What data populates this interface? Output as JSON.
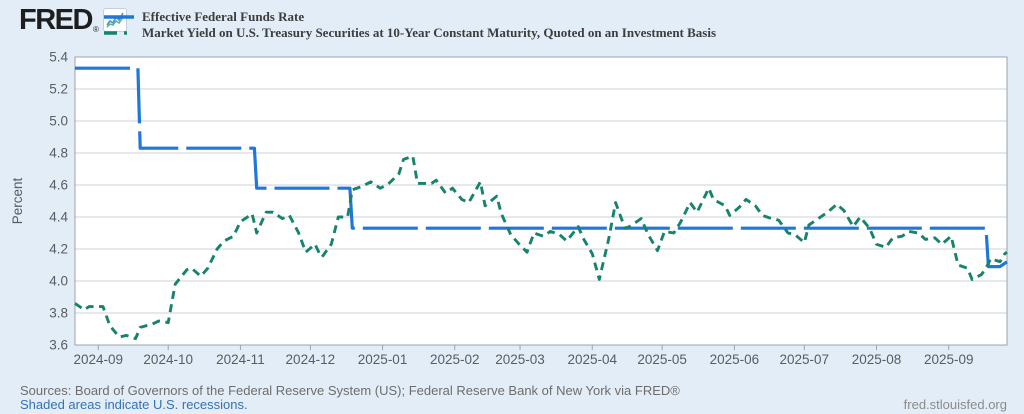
{
  "header": {
    "logo_text": "FRED",
    "logo_reg_mark": "®",
    "legend": [
      {
        "label": "Effective Federal Funds Rate",
        "color": "#2176d9",
        "style": "solid"
      },
      {
        "label": "Market Yield on U.S. Treasury Securities at 10-Year Constant Maturity, Quoted on an Investment Basis",
        "color": "#17836c",
        "style": "dash-dot"
      }
    ]
  },
  "footer": {
    "sources_line": "Sources: Board of Governors of the Federal Reserve System (US); Federal Reserve Bank of New York via FRED®",
    "recession_note": "Shaded areas indicate U.S. recessions.",
    "site_link": "fred.stlouisfed.org"
  },
  "chart_data": {
    "type": "line",
    "title": "",
    "xlabel": "",
    "ylabel": "Percent",
    "ylim": [
      3.6,
      5.4
    ],
    "y_ticks": [
      3.6,
      3.8,
      4.0,
      4.2,
      4.4,
      4.6,
      4.8,
      5.0,
      5.2,
      5.4
    ],
    "x_domain": [
      "2024-08-22",
      "2025-09-26"
    ],
    "x_ticks": [
      "2024-09",
      "2024-10",
      "2024-11",
      "2024-12",
      "2025-01",
      "2025-02",
      "2025-03",
      "2025-04",
      "2025-05",
      "2025-06",
      "2025-07",
      "2025-08",
      "2025-09"
    ],
    "grid": "horizontal",
    "legend_position": "top-left",
    "plot_bg": "#ffffff",
    "grid_color": "#ccd2d8",
    "axis_color": "#9aa4ae",
    "tick_label_color": "#585d62",
    "series": [
      {
        "name": "Effective Federal Funds Rate",
        "color": "#2176d9",
        "dash": "long-dash",
        "width": 3.2,
        "points": [
          [
            "2024-08-22",
            5.33
          ],
          [
            "2024-09-18",
            5.33
          ],
          [
            "2024-09-19",
            4.83
          ],
          [
            "2024-11-07",
            4.83
          ],
          [
            "2024-11-08",
            4.58
          ],
          [
            "2024-12-18",
            4.58
          ],
          [
            "2024-12-19",
            4.33
          ],
          [
            "2025-09-17",
            4.33
          ],
          [
            "2025-09-18",
            4.09
          ],
          [
            "2025-09-23",
            4.09
          ],
          [
            "2025-09-26",
            4.12
          ]
        ]
      },
      {
        "name": "Market Yield on U.S. Treasury Securities at 10-Year Constant Maturity, Quoted on an Investment Basis",
        "color": "#17836c",
        "dash": "short-dash",
        "width": 2.9,
        "points": [
          [
            "2024-08-22",
            3.86
          ],
          [
            "2024-08-26",
            3.82
          ],
          [
            "2024-08-28",
            3.84
          ],
          [
            "2024-09-03",
            3.84
          ],
          [
            "2024-09-06",
            3.72
          ],
          [
            "2024-09-10",
            3.65
          ],
          [
            "2024-09-13",
            3.66
          ],
          [
            "2024-09-17",
            3.64
          ],
          [
            "2024-09-19",
            3.71
          ],
          [
            "2024-09-24",
            3.73
          ],
          [
            "2024-09-27",
            3.75
          ],
          [
            "2024-10-01",
            3.74
          ],
          [
            "2024-10-04",
            3.98
          ],
          [
            "2024-10-09",
            4.07
          ],
          [
            "2024-10-11",
            4.08
          ],
          [
            "2024-10-15",
            4.03
          ],
          [
            "2024-10-18",
            4.08
          ],
          [
            "2024-10-22",
            4.2
          ],
          [
            "2024-10-25",
            4.25
          ],
          [
            "2024-10-29",
            4.28
          ],
          [
            "2024-11-01",
            4.37
          ],
          [
            "2024-11-06",
            4.42
          ],
          [
            "2024-11-08",
            4.3
          ],
          [
            "2024-11-12",
            4.43
          ],
          [
            "2024-11-15",
            4.43
          ],
          [
            "2024-11-19",
            4.39
          ],
          [
            "2024-11-22",
            4.41
          ],
          [
            "2024-11-26",
            4.3
          ],
          [
            "2024-11-29",
            4.18
          ],
          [
            "2024-12-03",
            4.23
          ],
          [
            "2024-12-05",
            4.17
          ],
          [
            "2024-12-06",
            4.15
          ],
          [
            "2024-12-10",
            4.23
          ],
          [
            "2024-12-13",
            4.4
          ],
          [
            "2024-12-17",
            4.4
          ],
          [
            "2024-12-19",
            4.57
          ],
          [
            "2024-12-23",
            4.59
          ],
          [
            "2024-12-27",
            4.62
          ],
          [
            "2024-12-31",
            4.58
          ],
          [
            "2025-01-03",
            4.6
          ],
          [
            "2025-01-08",
            4.67
          ],
          [
            "2025-01-10",
            4.76
          ],
          [
            "2025-01-14",
            4.78
          ],
          [
            "2025-01-16",
            4.61
          ],
          [
            "2025-01-22",
            4.61
          ],
          [
            "2025-01-24",
            4.63
          ],
          [
            "2025-01-28",
            4.55
          ],
          [
            "2025-01-31",
            4.58
          ],
          [
            "2025-02-04",
            4.51
          ],
          [
            "2025-02-07",
            4.49
          ],
          [
            "2025-02-12",
            4.62
          ],
          [
            "2025-02-14",
            4.47
          ],
          [
            "2025-02-19",
            4.53
          ],
          [
            "2025-02-21",
            4.42
          ],
          [
            "2025-02-25",
            4.29
          ],
          [
            "2025-02-28",
            4.24
          ],
          [
            "2025-03-04",
            4.18
          ],
          [
            "2025-03-07",
            4.3
          ],
          [
            "2025-03-11",
            4.28
          ],
          [
            "2025-03-14",
            4.31
          ],
          [
            "2025-03-18",
            4.29
          ],
          [
            "2025-03-21",
            4.25
          ],
          [
            "2025-03-26",
            4.34
          ],
          [
            "2025-03-28",
            4.27
          ],
          [
            "2025-04-01",
            4.17
          ],
          [
            "2025-04-04",
            4.01
          ],
          [
            "2025-04-08",
            4.26
          ],
          [
            "2025-04-11",
            4.49
          ],
          [
            "2025-04-15",
            4.33
          ],
          [
            "2025-04-17",
            4.34
          ],
          [
            "2025-04-22",
            4.39
          ],
          [
            "2025-04-25",
            4.29
          ],
          [
            "2025-04-29",
            4.19
          ],
          [
            "2025-05-02",
            4.31
          ],
          [
            "2025-05-06",
            4.3
          ],
          [
            "2025-05-09",
            4.37
          ],
          [
            "2025-05-13",
            4.49
          ],
          [
            "2025-05-16",
            4.43
          ],
          [
            "2025-05-21",
            4.58
          ],
          [
            "2025-05-23",
            4.51
          ],
          [
            "2025-05-28",
            4.47
          ],
          [
            "2025-05-30",
            4.41
          ],
          [
            "2025-06-03",
            4.46
          ],
          [
            "2025-06-06",
            4.51
          ],
          [
            "2025-06-10",
            4.47
          ],
          [
            "2025-06-13",
            4.41
          ],
          [
            "2025-06-17",
            4.39
          ],
          [
            "2025-06-20",
            4.38
          ],
          [
            "2025-06-24",
            4.3
          ],
          [
            "2025-06-27",
            4.29
          ],
          [
            "2025-07-01",
            4.24
          ],
          [
            "2025-07-03",
            4.35
          ],
          [
            "2025-07-08",
            4.4
          ],
          [
            "2025-07-11",
            4.43
          ],
          [
            "2025-07-15",
            4.48
          ],
          [
            "2025-07-18",
            4.44
          ],
          [
            "2025-07-22",
            4.34
          ],
          [
            "2025-07-25",
            4.4
          ],
          [
            "2025-07-29",
            4.33
          ],
          [
            "2025-08-01",
            4.23
          ],
          [
            "2025-08-05",
            4.21
          ],
          [
            "2025-08-08",
            4.27
          ],
          [
            "2025-08-12",
            4.28
          ],
          [
            "2025-08-15",
            4.31
          ],
          [
            "2025-08-19",
            4.3
          ],
          [
            "2025-08-22",
            4.26
          ],
          [
            "2025-08-26",
            4.27
          ],
          [
            "2025-08-29",
            4.23
          ],
          [
            "2025-09-02",
            4.28
          ],
          [
            "2025-09-05",
            4.1
          ],
          [
            "2025-09-09",
            4.08
          ],
          [
            "2025-09-11",
            4.01
          ],
          [
            "2025-09-15",
            4.04
          ],
          [
            "2025-09-17",
            4.08
          ],
          [
            "2025-09-19",
            4.14
          ],
          [
            "2025-09-23",
            4.12
          ],
          [
            "2025-09-25",
            4.17
          ],
          [
            "2025-09-26",
            4.18
          ]
        ]
      }
    ]
  }
}
